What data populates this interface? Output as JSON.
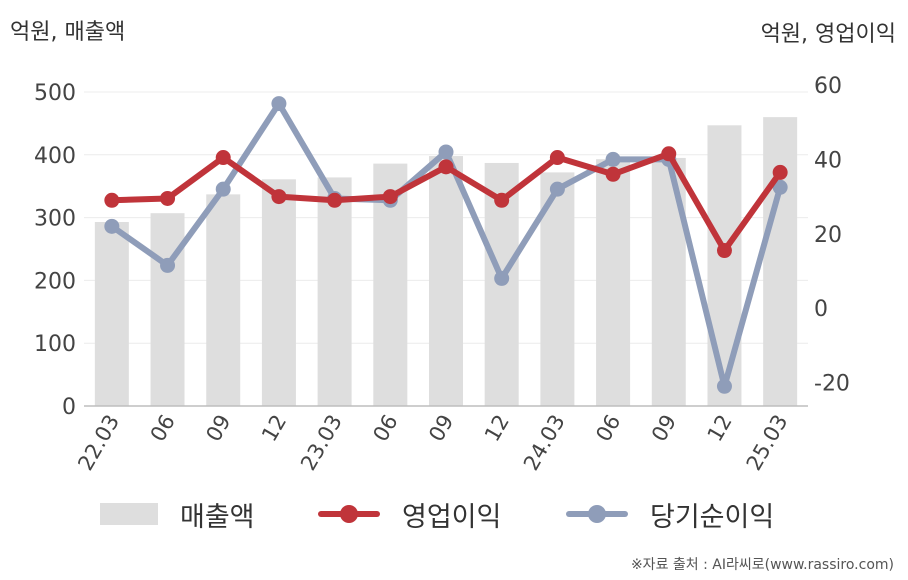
{
  "units": {
    "left": "억원, 매출액",
    "right": "억원, 영업이익"
  },
  "chart_data": {
    "type": "bar",
    "categories": [
      "22.03",
      "06",
      "09",
      "12",
      "23.03",
      "06",
      "09",
      "12",
      "24.03",
      "06",
      "09",
      "12",
      "25.03"
    ],
    "series": [
      {
        "name": "매출액",
        "kind": "bar",
        "axis": "left",
        "values": [
          293,
          307,
          337,
          361,
          364,
          386,
          398,
          387,
          372,
          393,
          395,
          447,
          460
        ]
      },
      {
        "name": "영업이익",
        "kind": "line",
        "axis": "right",
        "values": [
          29.0,
          29.5,
          40.5,
          30.0,
          29.0,
          30.0,
          38.0,
          29.0,
          40.5,
          36.0,
          41.5,
          15.5,
          36.5
        ]
      },
      {
        "name": "당기순이익",
        "kind": "line",
        "axis": "right",
        "values": [
          22.0,
          11.5,
          32.0,
          55.0,
          29.5,
          29.0,
          42.0,
          8.0,
          32.0,
          40.0,
          40.0,
          -21.0,
          32.5
        ]
      }
    ],
    "y_left": {
      "range": [
        0,
        500
      ],
      "ticks": [
        "0",
        "100",
        "200",
        "300",
        "400",
        "500"
      ]
    },
    "y_right": {
      "range": [
        -22,
        60
      ],
      "ticks": [
        "-20",
        "0",
        "20",
        "40",
        "60"
      ]
    },
    "grid": true,
    "legend": "bottom",
    "colors": {
      "bar": "#dedede",
      "operating": "#c0343a",
      "net": "#8f9db9"
    }
  },
  "legend": {
    "sales": "매출액",
    "operating": "영업이익",
    "net": "당기순이익"
  },
  "source": "※자료 출처 : AI라씨로(www.rassiro.com)"
}
